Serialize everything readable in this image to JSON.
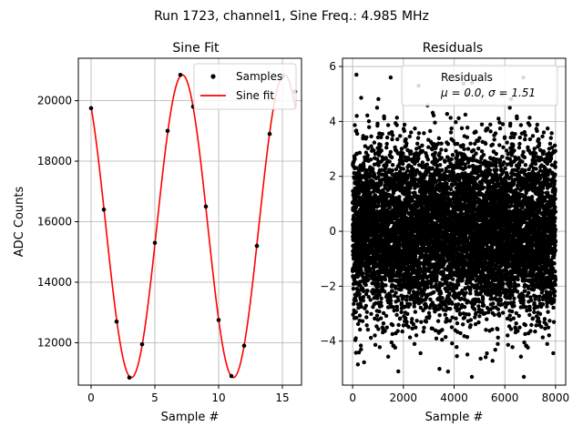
{
  "figure": {
    "suptitle": "Run 1723, channel1, Sine Freq.: 4.985 MHz"
  },
  "chart_data": [
    {
      "type": "line",
      "title": "Sine Fit",
      "xlabel": "Sample #",
      "ylabel": "ADC Counts",
      "xlim": [
        -1.0,
        16.5
      ],
      "ylim": [
        10600,
        21400
      ],
      "xticks": [
        0,
        5,
        10,
        15
      ],
      "yticks": [
        12000,
        14000,
        16000,
        18000,
        20000
      ],
      "grid": true,
      "legend": {
        "placement": "upper-right",
        "entries": [
          "Samples",
          "Sine fit"
        ]
      },
      "series": [
        {
          "name": "Samples",
          "kind": "scatter",
          "color": "#000000",
          "x": [
            0,
            1,
            2,
            3,
            4,
            5,
            6,
            7,
            8,
            9,
            10,
            11,
            12,
            13,
            14,
            15,
            16
          ],
          "y": [
            19750,
            16400,
            12700,
            10850,
            11950,
            15300,
            19000,
            20850,
            19800,
            16500,
            12750,
            10900,
            11900,
            15200,
            18900,
            20800,
            20300
          ]
        },
        {
          "name": "Sine fit",
          "kind": "line",
          "color": "#ff0000",
          "model": {
            "offset": 15850,
            "amplitude": 5000,
            "period_samples": 8.0,
            "phase_deg": 128,
            "x_range": [
              0,
              16
            ]
          }
        }
      ]
    },
    {
      "type": "scatter",
      "title": "Residuals",
      "xlabel": "Sample #",
      "ylabel": "",
      "xlim": [
        -400,
        8400
      ],
      "ylim": [
        -5.6,
        6.3
      ],
      "xticks": [
        0,
        2000,
        4000,
        6000,
        8000
      ],
      "yticks": [
        -4,
        -2,
        0,
        2,
        4,
        6
      ],
      "grid": true,
      "legend": {
        "placement": "upper-right",
        "entries": [
          "Residuals",
          "μ = 0.0, σ = 1.51"
        ]
      },
      "series": [
        {
          "name": "Residuals",
          "color": "#000000",
          "n_points": 8000,
          "x_range": [
            0,
            8000
          ],
          "mean": 0.0,
          "std": 1.51,
          "notable_points": [
            {
              "x": 150,
              "y": 5.7
            },
            {
              "x": 2600,
              "y": 5.3
            },
            {
              "x": 4700,
              "y": -5.3
            },
            {
              "x": 6750,
              "y": -5.3
            },
            {
              "x": 1800,
              "y": -5.1
            }
          ]
        }
      ]
    }
  ]
}
